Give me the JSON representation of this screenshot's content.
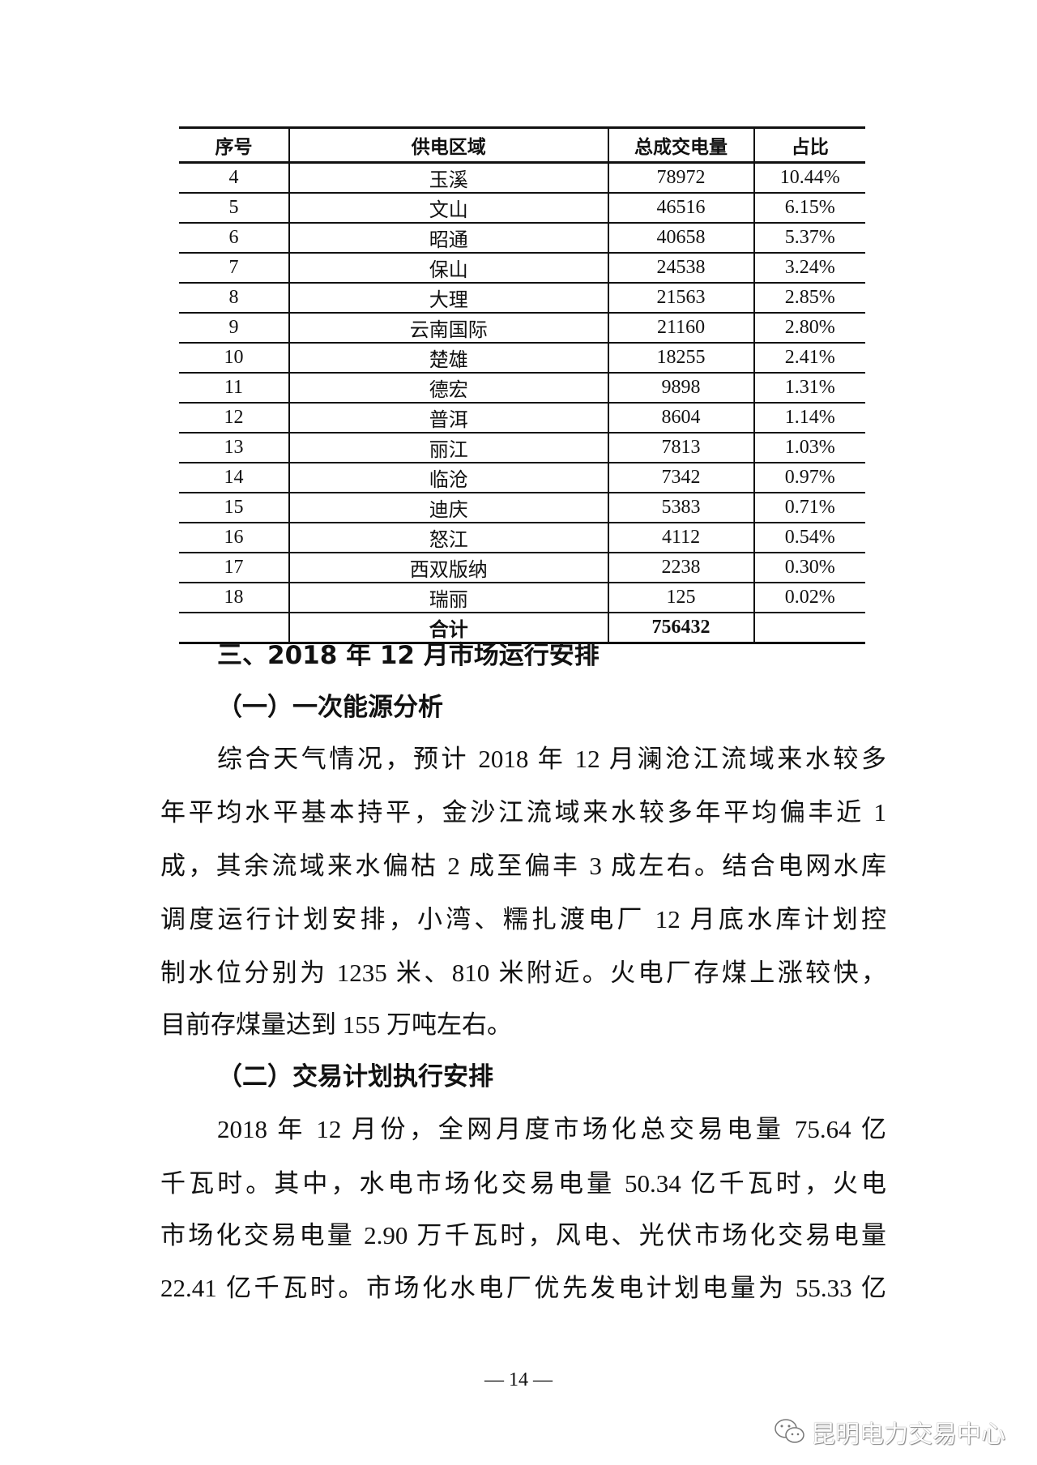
{
  "table": {
    "headers": [
      "序号",
      "供电区域",
      "总成交电量",
      "占比"
    ],
    "rows": [
      [
        "4",
        "玉溪",
        "78972",
        "10.44%"
      ],
      [
        "5",
        "文山",
        "46516",
        "6.15%"
      ],
      [
        "6",
        "昭通",
        "40658",
        "5.37%"
      ],
      [
        "7",
        "保山",
        "24538",
        "3.24%"
      ],
      [
        "8",
        "大理",
        "21563",
        "2.85%"
      ],
      [
        "9",
        "云南国际",
        "21160",
        "2.80%"
      ],
      [
        "10",
        "楚雄",
        "18255",
        "2.41%"
      ],
      [
        "11",
        "德宏",
        "9898",
        "1.31%"
      ],
      [
        "12",
        "普洱",
        "8604",
        "1.14%"
      ],
      [
        "13",
        "丽江",
        "7813",
        "1.03%"
      ],
      [
        "14",
        "临沧",
        "7342",
        "0.97%"
      ],
      [
        "15",
        "迪庆",
        "5383",
        "0.71%"
      ],
      [
        "16",
        "怒江",
        "4112",
        "0.54%"
      ],
      [
        "17",
        "西双版纳",
        "2238",
        "0.30%"
      ],
      [
        "18",
        "瑞丽",
        "125",
        "0.02%"
      ]
    ],
    "total": [
      "",
      "合计",
      "756432",
      ""
    ]
  },
  "section3_heading": "三、2018 年 12 月市场运行安排",
  "sub1_heading": "（一）一次能源分析",
  "para1_lines": [
    "综合天气情况，预计 2018 年 12 月澜沧江流域来水较多",
    "年平均水平基本持平，金沙江流域来水较多年平均偏丰近 1",
    "成，其余流域来水偏枯 2 成至偏丰 3 成左右。结合电网水库",
    "调度运行计划安排，小湾、糯扎渡电厂 12 月底水库计划控",
    "制水位分别为 1235 米、810 米附近。火电厂存煤上涨较快，",
    "目前存煤量达到 155 万吨左右。"
  ],
  "sub2_heading": "（二）交易计划执行安排",
  "para2_lines": [
    "2018 年 12 月份，全网月度市场化总交易电量 75.64 亿",
    "千瓦时。其中，水电市场化交易电量 50.34 亿千瓦时，火电",
    "市场化交易电量 2.90 万千瓦时，风电、光伏市场化交易电量",
    "22.41 亿千瓦时。市场化水电厂优先发电计划电量为 55.33 亿"
  ],
  "page_number": "— 14 —",
  "watermark": {
    "icon": "wechat-icon",
    "text": "昆明电力交易中心"
  }
}
